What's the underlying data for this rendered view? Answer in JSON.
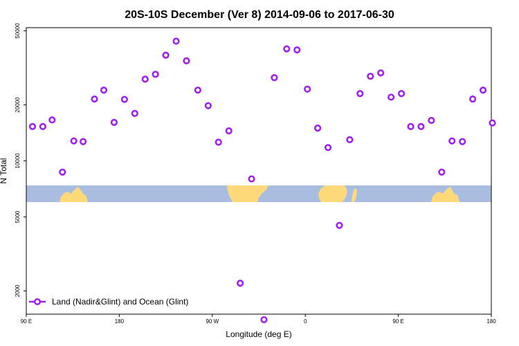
{
  "chart_data": {
    "type": "scatter",
    "title": "20S-10S December (Ver 8)   2014-09-06 to 2017-06-30",
    "xlabel": "Longitude (deg E)",
    "ylabel": "N Total",
    "xlim": [
      90,
      540
    ],
    "ylim_log": [
      1500,
      52000
    ],
    "x_ticks": [
      {
        "value": 90,
        "label": "90 E"
      },
      {
        "value": 180,
        "label": "180"
      },
      {
        "value": 270,
        "label": "90 W"
      },
      {
        "value": 360,
        "label": "0"
      },
      {
        "value": 450,
        "label": "90 E"
      },
      {
        "value": 540,
        "label": "180"
      }
    ],
    "y_ticks": [
      {
        "value": 2000,
        "label": "2000"
      },
      {
        "value": 5000,
        "label": "5000"
      },
      {
        "value": 10000,
        "label": "10000"
      },
      {
        "value": 20000,
        "label": "20000"
      },
      {
        "value": 50000,
        "label": "50000"
      }
    ],
    "series": [
      {
        "name": "Land (Nadir&Glint) and Ocean (Glint)",
        "color": "#a020f0",
        "points": [
          [
            96,
            15300
          ],
          [
            106,
            15300
          ],
          [
            115,
            16600
          ],
          [
            125,
            8700
          ],
          [
            136,
            12800
          ],
          [
            145,
            12700
          ],
          [
            156,
            21500
          ],
          [
            165,
            24000
          ],
          [
            175,
            16100
          ],
          [
            185,
            21400
          ],
          [
            195,
            18000
          ],
          [
            205,
            27500
          ],
          [
            215,
            29200
          ],
          [
            225,
            37000
          ],
          [
            235,
            44000
          ],
          [
            245,
            34500
          ],
          [
            256,
            24000
          ],
          [
            266,
            19800
          ],
          [
            276,
            12600
          ],
          [
            286,
            14500
          ],
          [
            297,
            2200
          ],
          [
            308,
            8000
          ],
          [
            320,
            1400
          ],
          [
            330,
            28000
          ],
          [
            342,
            40000
          ],
          [
            352,
            39500
          ],
          [
            362,
            24300
          ],
          [
            372,
            15000
          ],
          [
            382,
            11800
          ],
          [
            393,
            4500
          ],
          [
            403,
            13000
          ],
          [
            413,
            23000
          ],
          [
            423,
            28500
          ],
          [
            433,
            29700
          ],
          [
            443,
            22000
          ],
          [
            453,
            23000
          ],
          [
            462,
            15300
          ],
          [
            472,
            15300
          ],
          [
            482,
            16500
          ],
          [
            492,
            8700
          ],
          [
            502,
            12800
          ],
          [
            512,
            12700
          ],
          [
            522,
            21500
          ],
          [
            532,
            24000
          ],
          [
            541,
            16000
          ]
        ]
      }
    ],
    "map_strip": {
      "ocean_color": "#a8bde0",
      "land_color": "#ffd97a"
    },
    "legend": {
      "position": "bottom-left",
      "label": "Land (Nadir&Glint) and Ocean (Glint)"
    }
  }
}
